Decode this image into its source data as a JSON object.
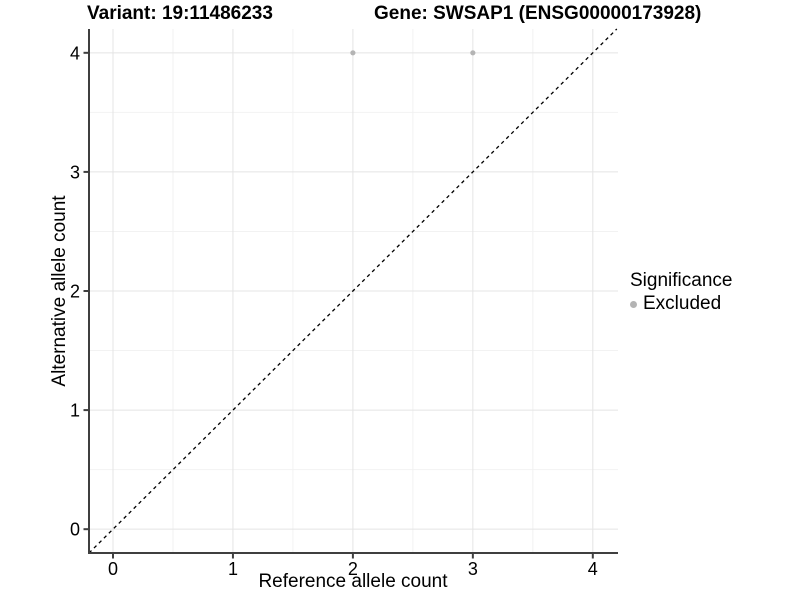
{
  "titles": {
    "variant": "Variant: 19:11486233",
    "gene": "Gene: SWSAP1 (ENSG00000173928)"
  },
  "axes": {
    "x_label": "Reference allele count",
    "y_label": "Alternative allele count"
  },
  "legend": {
    "title": "Significance",
    "items": [
      {
        "label": "Excluded",
        "color": "#b4b4b4"
      }
    ]
  },
  "chart_data": {
    "type": "scatter",
    "title": "Variant: 19:11486233   Gene: SWSAP1 (ENSG00000173928)",
    "xlabel": "Reference allele count",
    "ylabel": "Alternative allele count",
    "xlim": [
      -0.2,
      4.21
    ],
    "ylim": [
      -0.2,
      4.2
    ],
    "x_ticks": [
      0,
      1,
      2,
      3,
      4
    ],
    "y_ticks": [
      0,
      1,
      2,
      3,
      4
    ],
    "grid": true,
    "legend_position": "right",
    "series": [
      {
        "name": "Excluded",
        "color": "#b4b4b4",
        "points": [
          [
            2,
            4
          ],
          [
            3,
            4
          ]
        ]
      }
    ],
    "reference_line": {
      "type": "identity",
      "slope": 1,
      "intercept": 0,
      "style": "dashed",
      "color": "#000000"
    }
  },
  "colors": {
    "background": "#ffffff",
    "grid_major": "#e4e4e4",
    "grid_minor": "#f2f2f2",
    "axis_line": "#3f3f3f",
    "point": "#b4b4b4",
    "text": "#000000"
  }
}
